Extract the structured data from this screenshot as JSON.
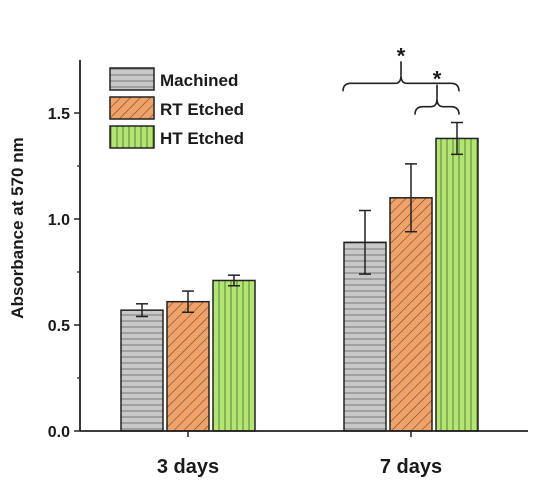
{
  "chart_data": {
    "type": "bar",
    "categories": [
      "3 days",
      "7 days"
    ],
    "series": [
      {
        "name": "Machined",
        "values": [
          0.57,
          0.89
        ],
        "errors": [
          0.03,
          0.15
        ],
        "color": "#c8c8c8",
        "pattern": "horizontal-lines"
      },
      {
        "name": "RT Etched",
        "values": [
          0.61,
          1.1
        ],
        "errors": [
          0.05,
          0.16
        ],
        "color": "#f0a268",
        "pattern": "diagonal-lines"
      },
      {
        "name": "HT Etched",
        "values": [
          0.71,
          1.38
        ],
        "errors": [
          0.025,
          0.075
        ],
        "color": "#b3e572",
        "pattern": "vertical-lines"
      }
    ],
    "xlabel": "",
    "ylabel": "Absorbance at 570 nm",
    "ylim": [
      0,
      1.75
    ],
    "yticks": [
      "0.0",
      "0.5",
      "1.0",
      "1.5"
    ],
    "legend_position": "top-left",
    "significance": [
      {
        "label": "*",
        "group": "7 days",
        "between": [
          "Machined",
          "HT Etched"
        ]
      },
      {
        "label": "*",
        "group": "7 days",
        "between": [
          "RT Etched",
          "HT Etched"
        ]
      }
    ]
  }
}
